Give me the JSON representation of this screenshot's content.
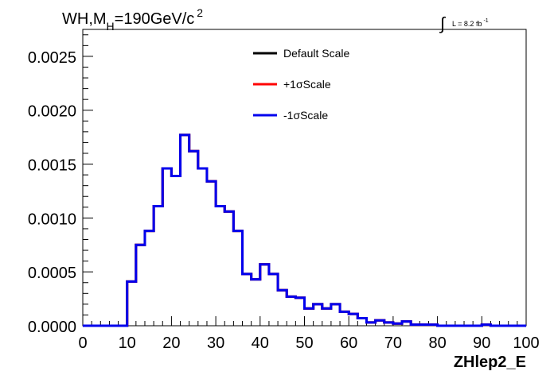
{
  "title": {
    "main": "WH,M",
    "subscript": "H",
    "rest": "=190GeV/c",
    "superscript": "2"
  },
  "lumi": {
    "integral_symbol": "∫",
    "text": "L = 8.2 fb",
    "superscript": "-1"
  },
  "chart_data": {
    "type": "line",
    "xlabel": "ZHlep2_E",
    "ylabel": "",
    "xlim": [
      0,
      100
    ],
    "ylim": [
      0,
      0.00275
    ],
    "x_ticks": [
      0,
      10,
      20,
      30,
      40,
      50,
      60,
      70,
      80,
      90,
      100
    ],
    "y_ticks": [
      "0.0000",
      "0.0005",
      "0.0010",
      "0.0015",
      "0.0020",
      "0.0025"
    ],
    "y_tick_values": [
      0,
      0.0005,
      0.001,
      0.0015,
      0.002,
      0.0025
    ],
    "bin_edges": [
      0,
      2,
      4,
      6,
      8,
      10,
      12,
      14,
      16,
      18,
      20,
      22,
      24,
      26,
      28,
      30,
      32,
      34,
      36,
      38,
      40,
      42,
      44,
      46,
      48,
      50,
      52,
      54,
      56,
      58,
      60,
      62,
      64,
      66,
      68,
      70,
      72,
      74,
      76,
      78,
      80,
      82,
      84,
      86,
      88,
      90,
      92,
      94,
      96,
      98,
      100
    ],
    "legend_position": "top-center",
    "grid": false,
    "series": [
      {
        "name": "Default Scale",
        "color": "#000000",
        "values": [
          0,
          0,
          0,
          0,
          0,
          0.00041,
          0.00075,
          0.00088,
          0.00111,
          0.00146,
          0.00139,
          0.00177,
          0.00162,
          0.00146,
          0.00134,
          0.00111,
          0.00106,
          0.00088,
          0.00048,
          0.00043,
          0.00057,
          0.00048,
          0.00033,
          0.00027,
          0.00026,
          0.00016,
          0.0002,
          0.00016,
          0.0002,
          0.00013,
          0.00011,
          7e-05,
          3e-05,
          5e-05,
          3e-05,
          2e-05,
          4e-05,
          1e-05,
          1e-05,
          1e-05,
          0,
          0,
          0,
          0,
          0,
          1e-05,
          0,
          0,
          0,
          0
        ]
      },
      {
        "name": "+1σScale",
        "color": "#ff0000",
        "values": [
          0,
          0,
          0,
          0,
          0,
          0.00041,
          0.00075,
          0.00088,
          0.00111,
          0.00146,
          0.00139,
          0.00177,
          0.00162,
          0.00146,
          0.00134,
          0.00111,
          0.00106,
          0.00088,
          0.00048,
          0.00043,
          0.00057,
          0.00048,
          0.00033,
          0.00027,
          0.00026,
          0.00016,
          0.0002,
          0.00016,
          0.0002,
          0.00013,
          0.00011,
          7e-05,
          3e-05,
          5e-05,
          3e-05,
          2e-05,
          4e-05,
          1e-05,
          1e-05,
          1e-05,
          0,
          0,
          0,
          0,
          0,
          1e-05,
          0,
          0,
          0,
          0
        ]
      },
      {
        "name": "-1σScale",
        "color": "#0000ee",
        "values": [
          0,
          0,
          0,
          0,
          0,
          0.00041,
          0.00075,
          0.00088,
          0.00111,
          0.00146,
          0.00139,
          0.00177,
          0.00162,
          0.00146,
          0.00134,
          0.00111,
          0.00106,
          0.00088,
          0.00048,
          0.00043,
          0.00057,
          0.00048,
          0.00033,
          0.00027,
          0.00026,
          0.00016,
          0.0002,
          0.00016,
          0.0002,
          0.00013,
          0.00011,
          7e-05,
          3e-05,
          5e-05,
          3e-05,
          2e-05,
          4e-05,
          1e-05,
          1e-05,
          1e-05,
          0,
          0,
          0,
          0,
          0,
          1e-05,
          0,
          0,
          0,
          0
        ]
      }
    ]
  }
}
